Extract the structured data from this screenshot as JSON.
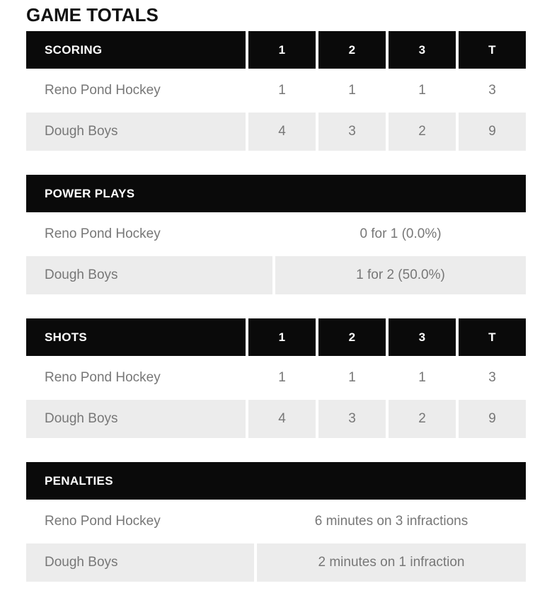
{
  "page_title": "GAME TOTALS",
  "teams": [
    "Reno Pond Hockey",
    "Dough Boys"
  ],
  "colors": {
    "header_bg": "#0a0a0a",
    "header_text": "#ffffff",
    "alt_row_bg": "#ececec",
    "body_text": "#777777",
    "title_text": "#111111",
    "page_bg": "#ffffff"
  },
  "sections": [
    {
      "title": "SCORING",
      "type": "by-period",
      "columns": [
        "1",
        "2",
        "3",
        "T"
      ],
      "rows": [
        {
          "team": "Reno Pond Hockey",
          "values": [
            "1",
            "1",
            "1",
            "3"
          ]
        },
        {
          "team": "Dough Boys",
          "values": [
            "4",
            "3",
            "2",
            "9"
          ]
        }
      ]
    },
    {
      "title": "POWER PLAYS",
      "type": "single-value",
      "rows": [
        {
          "team": "Reno Pond Hockey",
          "value": "0 for 1 (0.0%)"
        },
        {
          "team": "Dough Boys",
          "value": "1 for 2 (50.0%)"
        }
      ]
    },
    {
      "title": "SHOTS",
      "type": "by-period",
      "columns": [
        "1",
        "2",
        "3",
        "T"
      ],
      "rows": [
        {
          "team": "Reno Pond Hockey",
          "values": [
            "1",
            "1",
            "1",
            "3"
          ]
        },
        {
          "team": "Dough Boys",
          "values": [
            "4",
            "3",
            "2",
            "9"
          ]
        }
      ]
    },
    {
      "title": "PENALTIES",
      "type": "single-value",
      "rows": [
        {
          "team": "Reno Pond Hockey",
          "value": "6 minutes on 3 infractions"
        },
        {
          "team": "Dough Boys",
          "value": "2 minutes on 1 infraction"
        }
      ]
    }
  ]
}
